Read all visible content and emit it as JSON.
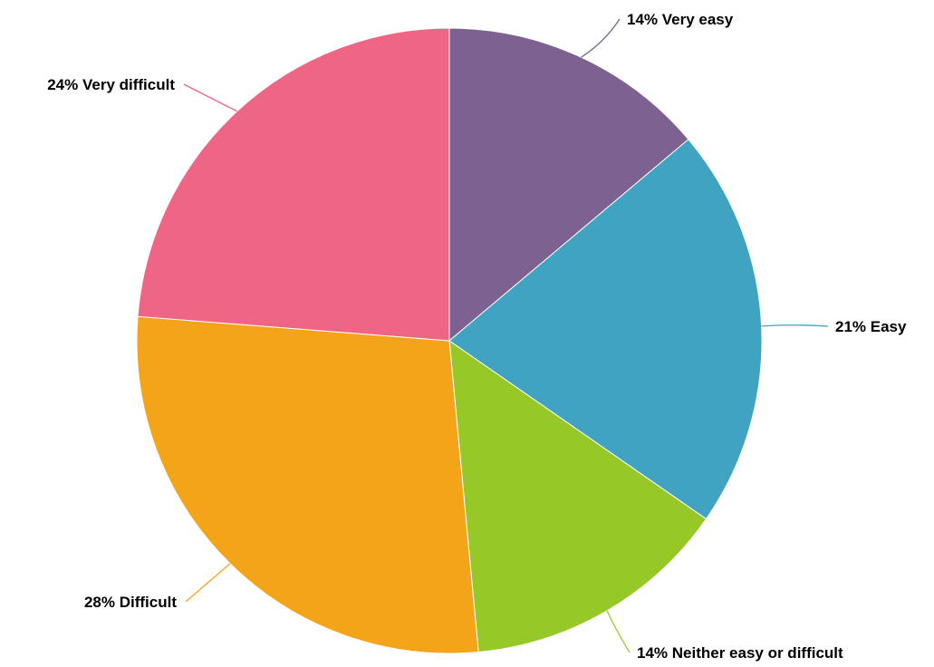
{
  "chart_data": {
    "type": "pie",
    "title": "",
    "slices": [
      {
        "label": "Very easy",
        "value": 14,
        "display": "14% Very easy",
        "color": "#7d6190"
      },
      {
        "label": "Easy",
        "value": 21,
        "display": "21% Easy",
        "color": "#40a3c1"
      },
      {
        "label": "Neither easy or difficult",
        "value": 14,
        "display": "14% Neither easy or difficult",
        "color": "#96c928"
      },
      {
        "label": "Difficult",
        "value": 28,
        "display": "28% Difficult",
        "color": "#f4a419"
      },
      {
        "label": "Very difficult",
        "value": 24,
        "display": "24% Very difficult",
        "color": "#ef6586"
      }
    ],
    "start_angle_deg": 0,
    "direction": "clockwise",
    "legend": "none",
    "labels_outside": true
  }
}
